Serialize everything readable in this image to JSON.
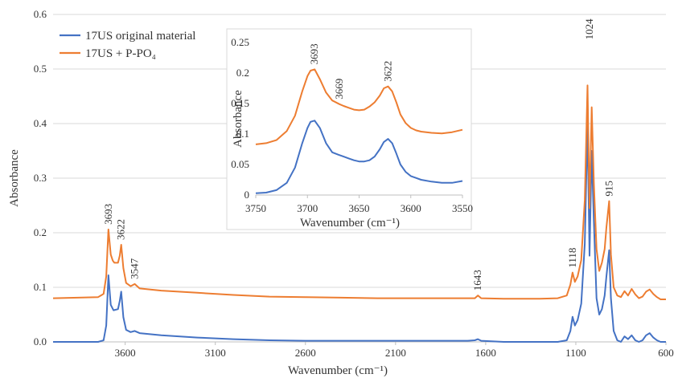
{
  "chart_data": [
    {
      "type": "line",
      "xlabel": "Wavenumber (cm⁻¹)",
      "ylabel": "Absorbance",
      "xlim": [
        4000,
        600
      ],
      "x_reversed": true,
      "ylim": [
        0,
        0.6
      ],
      "xticks": [
        3600,
        3100,
        2600,
        2100,
        1600,
        1100,
        600
      ],
      "yticks": [
        0.0,
        0.1,
        0.2,
        0.3,
        0.4,
        0.5,
        0.6
      ],
      "ytick_labels": [
        "0.0",
        "0.1",
        "0.2",
        "0.3",
        "0.4",
        "0.5",
        "0.6"
      ],
      "grid": "horizontal",
      "legend_position": "top-left",
      "series": [
        {
          "name": "17US original material",
          "color": "#4472C4",
          "x": [
            4000,
            3750,
            3720,
            3705,
            3693,
            3680,
            3665,
            3640,
            3630,
            3622,
            3610,
            3595,
            3570,
            3547,
            3520,
            3400,
            3200,
            3000,
            2800,
            2600,
            2400,
            2200,
            2000,
            1800,
            1700,
            1660,
            1643,
            1625,
            1500,
            1300,
            1200,
            1150,
            1130,
            1118,
            1105,
            1090,
            1070,
            1050,
            1035,
            1024,
            1012,
            1000,
            985,
            970,
            955,
            940,
            930,
            915,
            905,
            890,
            870,
            850,
            830,
            810,
            790,
            770,
            750,
            730,
            710,
            690,
            670,
            650,
            630,
            610,
            600
          ],
          "y": [
            0.0,
            0.0,
            0.003,
            0.03,
            0.122,
            0.068,
            0.058,
            0.06,
            0.075,
            0.092,
            0.045,
            0.022,
            0.018,
            0.02,
            0.016,
            0.012,
            0.008,
            0.005,
            0.003,
            0.002,
            0.002,
            0.002,
            0.002,
            0.002,
            0.002,
            0.003,
            0.005,
            0.002,
            0.0,
            0.0,
            0.0,
            0.003,
            0.02,
            0.046,
            0.03,
            0.04,
            0.07,
            0.18,
            0.4,
            0.158,
            0.35,
            0.22,
            0.08,
            0.05,
            0.06,
            0.085,
            0.12,
            0.168,
            0.08,
            0.02,
            0.003,
            0.0,
            0.01,
            0.005,
            0.012,
            0.003,
            0.0,
            0.003,
            0.012,
            0.016,
            0.008,
            0.003,
            0.0,
            0.0,
            0.0
          ]
        },
        {
          "name": "17US + P-PO₄",
          "color": "#ED7D31",
          "x": [
            4000,
            3750,
            3720,
            3705,
            3693,
            3680,
            3669,
            3660,
            3640,
            3630,
            3622,
            3610,
            3595,
            3570,
            3547,
            3520,
            3400,
            3200,
            3000,
            2800,
            2600,
            2400,
            2200,
            2000,
            1800,
            1700,
            1660,
            1643,
            1625,
            1500,
            1300,
            1200,
            1150,
            1130,
            1118,
            1105,
            1090,
            1070,
            1050,
            1035,
            1024,
            1012,
            1000,
            985,
            970,
            955,
            940,
            930,
            915,
            905,
            890,
            870,
            850,
            830,
            810,
            790,
            770,
            750,
            730,
            710,
            690,
            670,
            650,
            630,
            610,
            600
          ],
          "y": [
            0.08,
            0.082,
            0.088,
            0.12,
            0.206,
            0.16,
            0.149,
            0.145,
            0.145,
            0.158,
            0.178,
            0.135,
            0.108,
            0.102,
            0.106,
            0.098,
            0.094,
            0.09,
            0.086,
            0.083,
            0.082,
            0.081,
            0.08,
            0.08,
            0.08,
            0.08,
            0.08,
            0.085,
            0.08,
            0.079,
            0.079,
            0.08,
            0.085,
            0.105,
            0.127,
            0.11,
            0.12,
            0.15,
            0.26,
            0.47,
            0.245,
            0.43,
            0.29,
            0.17,
            0.13,
            0.145,
            0.17,
            0.21,
            0.258,
            0.16,
            0.1,
            0.085,
            0.082,
            0.093,
            0.085,
            0.097,
            0.087,
            0.08,
            0.083,
            0.092,
            0.096,
            0.088,
            0.082,
            0.078,
            0.078,
            0.078
          ]
        }
      ],
      "annotations": [
        {
          "text": "3693",
          "x": 3693,
          "y": 0.206
        },
        {
          "text": "3622",
          "x": 3622,
          "y": 0.178
        },
        {
          "text": "3547",
          "x": 3547,
          "y": 0.106
        },
        {
          "text": "1643",
          "x": 1643,
          "y": 0.085
        },
        {
          "text": "1118",
          "x": 1118,
          "y": 0.127
        },
        {
          "text": "1024",
          "x": 1024,
          "y": 0.545
        },
        {
          "text": "915",
          "x": 915,
          "y": 0.258
        }
      ]
    },
    {
      "type": "line",
      "inset": true,
      "xlabel": "Wavenumber (cm⁻¹)",
      "ylabel": "Absorbance",
      "xlim": [
        3750,
        3550
      ],
      "x_reversed": true,
      "ylim": [
        0,
        0.25
      ],
      "xticks": [
        3750,
        3700,
        3650,
        3600,
        3550
      ],
      "yticks": [
        0,
        0.05,
        0.1,
        0.15,
        0.2,
        0.25
      ],
      "ytick_labels": [
        "0",
        "0.05",
        "0.1",
        "0.15",
        "0.2",
        "0.25"
      ],
      "series": [
        {
          "name": "17US original material",
          "color": "#4472C4",
          "x": [
            3750,
            3740,
            3730,
            3720,
            3712,
            3705,
            3700,
            3697,
            3693,
            3688,
            3682,
            3676,
            3670,
            3665,
            3660,
            3655,
            3650,
            3645,
            3640,
            3635,
            3630,
            3626,
            3622,
            3618,
            3614,
            3610,
            3605,
            3600,
            3595,
            3590,
            3580,
            3570,
            3560,
            3550
          ],
          "y": [
            0.003,
            0.004,
            0.008,
            0.02,
            0.045,
            0.085,
            0.11,
            0.12,
            0.122,
            0.11,
            0.085,
            0.07,
            0.066,
            0.063,
            0.06,
            0.057,
            0.055,
            0.055,
            0.057,
            0.063,
            0.075,
            0.087,
            0.092,
            0.085,
            0.068,
            0.05,
            0.038,
            0.031,
            0.028,
            0.025,
            0.022,
            0.02,
            0.02,
            0.023
          ]
        },
        {
          "name": "17US + P-PO₄",
          "color": "#ED7D31",
          "x": [
            3750,
            3740,
            3730,
            3720,
            3712,
            3705,
            3700,
            3697,
            3693,
            3688,
            3682,
            3676,
            3669,
            3665,
            3660,
            3655,
            3650,
            3645,
            3640,
            3635,
            3630,
            3626,
            3622,
            3618,
            3614,
            3610,
            3605,
            3600,
            3595,
            3590,
            3580,
            3570,
            3560,
            3550
          ],
          "y": [
            0.083,
            0.085,
            0.09,
            0.105,
            0.13,
            0.17,
            0.195,
            0.204,
            0.206,
            0.19,
            0.168,
            0.155,
            0.149,
            0.146,
            0.143,
            0.14,
            0.139,
            0.14,
            0.145,
            0.152,
            0.163,
            0.175,
            0.178,
            0.17,
            0.152,
            0.132,
            0.118,
            0.11,
            0.106,
            0.104,
            0.102,
            0.101,
            0.103,
            0.107
          ]
        }
      ],
      "annotations": [
        {
          "text": "3693",
          "x": 3693,
          "y": 0.206
        },
        {
          "text": "3669",
          "x": 3669,
          "y": 0.149
        },
        {
          "text": "3622",
          "x": 3622,
          "y": 0.178
        }
      ]
    }
  ]
}
